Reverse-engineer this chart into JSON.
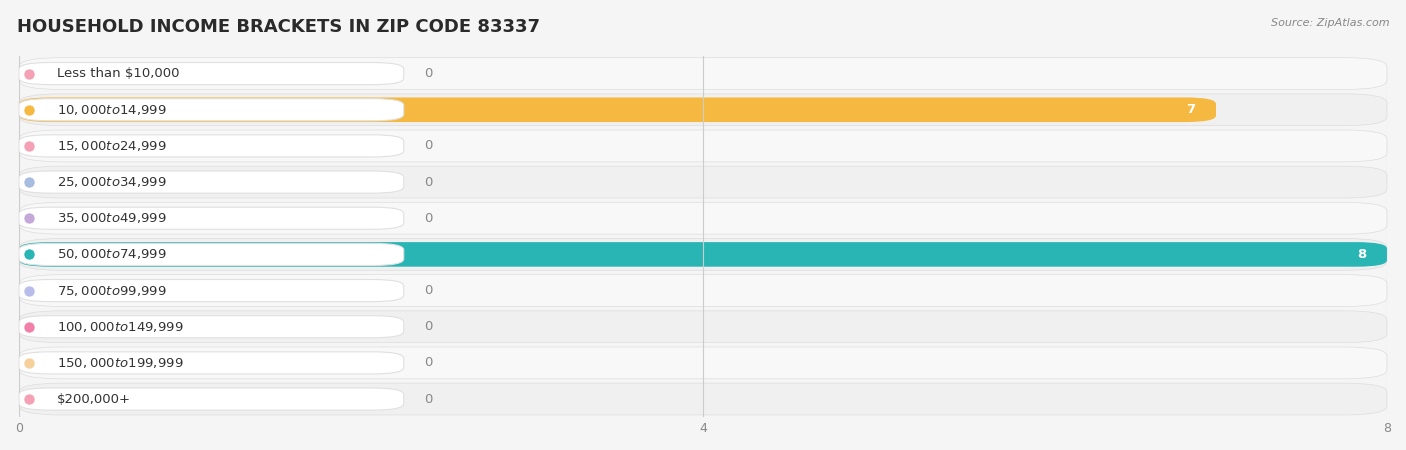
{
  "title": "HOUSEHOLD INCOME BRACKETS IN ZIP CODE 83337",
  "source": "Source: ZipAtlas.com",
  "categories": [
    "Less than $10,000",
    "$10,000 to $14,999",
    "$15,000 to $24,999",
    "$25,000 to $34,999",
    "$35,000 to $49,999",
    "$50,000 to $74,999",
    "$75,000 to $99,999",
    "$100,000 to $149,999",
    "$150,000 to $199,999",
    "$200,000+"
  ],
  "values": [
    0,
    7,
    0,
    0,
    0,
    8,
    0,
    0,
    0,
    0
  ],
  "bar_colors": [
    "#f4a0b5",
    "#f5b942",
    "#f4a0b5",
    "#a8bce0",
    "#c4a8d8",
    "#2ab5b5",
    "#b8bce8",
    "#f080a8",
    "#f5d09a",
    "#f4a0b5"
  ],
  "row_bg_light": "#f7f7f7",
  "row_bg_dark": "#eeeeee",
  "row_cap_color": "#e0e0e0",
  "pill_bg": "#ffffff",
  "pill_border": "#e8e8e8",
  "xlim": [
    0,
    8
  ],
  "xticks": [
    0,
    4,
    8
  ],
  "background_color": "#f5f5f5",
  "title_fontsize": 13,
  "source_fontsize": 8,
  "label_fontsize": 10,
  "value_fontsize": 9
}
